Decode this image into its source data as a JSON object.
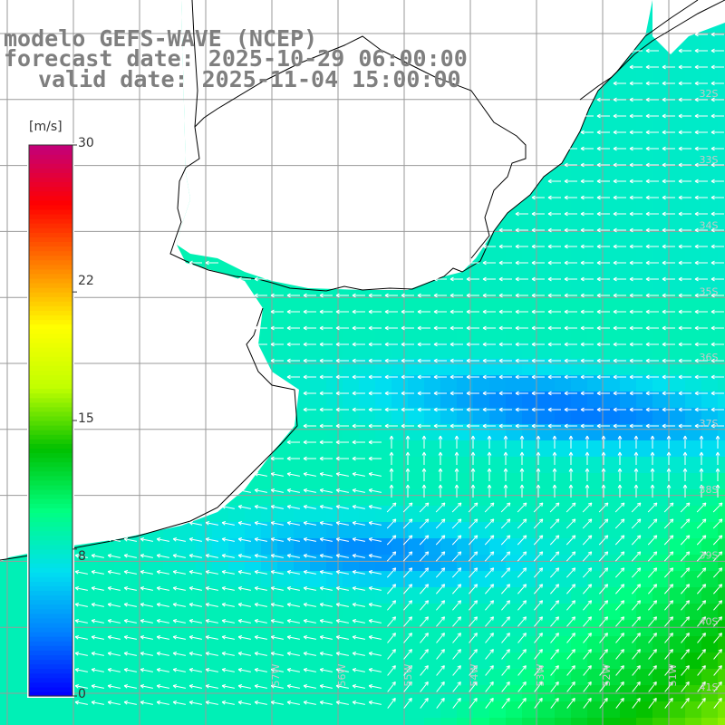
{
  "header": {
    "model_line": "modelo GEFS-WAVE (NCEP)",
    "forecast_line": "forecast date: 2025-10-29 06:00:00",
    "valid_line": "valid date: 2025-11-04 15:00:00"
  },
  "colorbar": {
    "units": "[m/s]",
    "ticks": [
      "30",
      "22",
      "15",
      "8",
      "0"
    ],
    "tick_values": [
      30,
      22,
      15,
      8,
      0
    ],
    "min": 0,
    "max": 30,
    "colors": [
      "#0000ff",
      "#0080ff",
      "#00e0f0",
      "#00ff80",
      "#00c000",
      "#c0ff00",
      "#ffff00",
      "#ff8000",
      "#ff0000",
      "#c00080"
    ]
  },
  "map": {
    "lat_labels": [
      "32S",
      "33S",
      "34S",
      "35S",
      "36S",
      "37S",
      "38S",
      "39S",
      "40S",
      "41S"
    ],
    "lat_values": [
      -32,
      -33,
      -34,
      -35,
      -36,
      -37,
      -38,
      -39,
      -40,
      -41
    ],
    "lon_labels": [
      "57W",
      "56W",
      "55W",
      "54W",
      "53W",
      "52W",
      "51W"
    ],
    "lon_values": [
      -57,
      -56,
      -55,
      -54,
      -53,
      -52,
      -51
    ],
    "land_color": "#ffffff",
    "grid_color": "#9a9a9a",
    "coast_color": "#000000",
    "arrow_color": "#ffffff"
  }
}
